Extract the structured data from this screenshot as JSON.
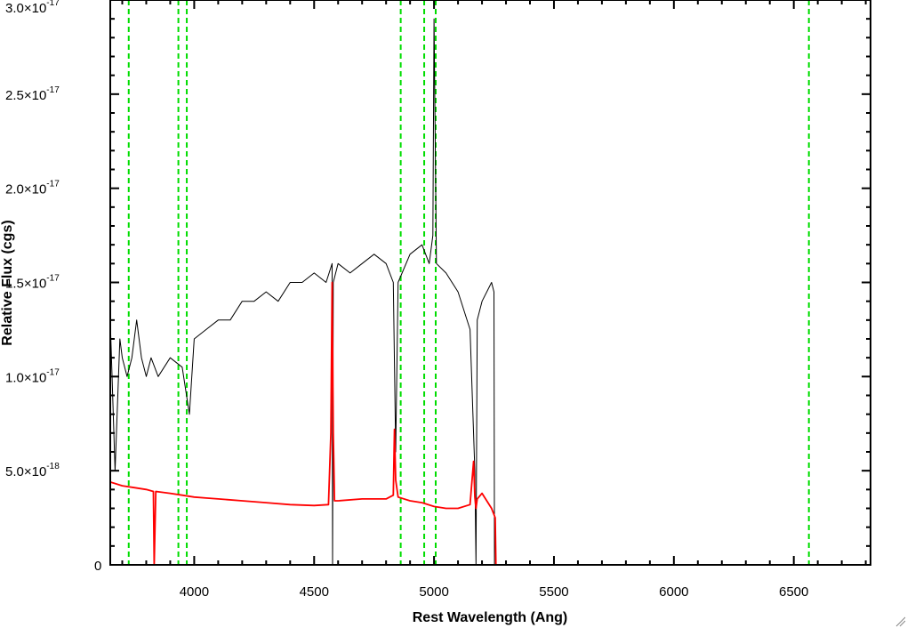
{
  "chart_data": {
    "type": "line",
    "xlabel": "Rest Wavelength (Ang)",
    "ylabel": "Relative Flux (cgs)",
    "xlim": [
      3650,
      6820
    ],
    "ylim": [
      0,
      3e-17
    ],
    "x_ticks": [
      {
        "value": 4000,
        "label": "4000"
      },
      {
        "value": 4500,
        "label": "4500"
      },
      {
        "value": 5000,
        "label": "5000"
      },
      {
        "value": 5500,
        "label": "5500"
      },
      {
        "value": 6000,
        "label": "6000"
      },
      {
        "value": 6500,
        "label": "6500"
      }
    ],
    "y_ticks": [
      {
        "value": 0,
        "mantissa": "0",
        "exponent": ""
      },
      {
        "value": 5e-18,
        "mantissa": "5.0×10",
        "exponent": "-18"
      },
      {
        "value": 1e-17,
        "mantissa": "1.0×10",
        "exponent": "-17"
      },
      {
        "value": 1.5e-17,
        "mantissa": "1.5×10",
        "exponent": "-17"
      },
      {
        "value": 2e-17,
        "mantissa": "2.0×10",
        "exponent": "-17"
      },
      {
        "value": 2.5e-17,
        "mantissa": "2.5×10",
        "exponent": "-17"
      },
      {
        "value": 3e-17,
        "mantissa": "3.0×10",
        "exponent": "-17"
      }
    ],
    "series": [
      {
        "color": "#000000",
        "style": "noisy observed spectrum",
        "x": [
          3650,
          3670,
          3690,
          3700,
          3720,
          3740,
          3760,
          3780,
          3800,
          3820,
          3850,
          3900,
          3950,
          3980,
          4000,
          4050,
          4100,
          4150,
          4200,
          4250,
          4300,
          4350,
          4400,
          4450,
          4500,
          4550,
          4575,
          4577,
          4580,
          4600,
          4650,
          4700,
          4750,
          4800,
          4830,
          4840,
          4850,
          4900,
          4950,
          4980,
          4995,
          5000,
          5010,
          5050,
          5100,
          5150,
          5170,
          5175,
          5180,
          5200,
          5240,
          5250,
          5252,
          6820
        ],
        "y": [
          1.3e-17,
          5e-18,
          1.2e-17,
          1.1e-17,
          1e-17,
          1.1e-17,
          1.3e-17,
          1.1e-17,
          1e-17,
          1.1e-17,
          1e-17,
          1.1e-17,
          1.05e-17,
          8e-18,
          1.2e-17,
          1.25e-17,
          1.3e-17,
          1.3e-17,
          1.4e-17,
          1.4e-17,
          1.45e-17,
          1.4e-17,
          1.5e-17,
          1.5e-17,
          1.55e-17,
          1.5e-17,
          1.6e-17,
          0.0,
          1.5e-17,
          1.6e-17,
          1.55e-17,
          1.6e-17,
          1.65e-17,
          1.6e-17,
          1.5e-17,
          6e-18,
          1.5e-17,
          1.65e-17,
          1.7e-17,
          1.6e-17,
          1.75e-17,
          2.9e-17,
          1.6e-17,
          1.55e-17,
          1.45e-17,
          1.25e-17,
          5e-18,
          0.0,
          1.3e-17,
          1.4e-17,
          1.5e-17,
          1.45e-17,
          0.0,
          0.0
        ]
      },
      {
        "color": "#ff0000",
        "style": "smooth model spectrum",
        "x": [
          3650,
          3700,
          3750,
          3800,
          3830,
          3833,
          3840,
          3900,
          3950,
          4000,
          4050,
          4100,
          4200,
          4300,
          4400,
          4500,
          4560,
          4570,
          4575,
          4580,
          4585,
          4600,
          4700,
          4800,
          4830,
          4835,
          4840,
          4850,
          4900,
          4950,
          5000,
          5050,
          5100,
          5150,
          5165,
          5170,
          5175,
          5180,
          5200,
          5240,
          5255,
          5258,
          6820
        ],
        "y": [
          4.4e-18,
          4.2e-18,
          4.1e-18,
          4e-18,
          3.9e-18,
          0.0,
          3.9e-18,
          3.8e-18,
          3.7e-18,
          3.6e-18,
          3.55e-18,
          3.5e-18,
          3.4e-18,
          3.3e-18,
          3.2e-18,
          3.15e-18,
          3.2e-18,
          7e-18,
          1.5e-17,
          7e-18,
          3.4e-18,
          3.4e-18,
          3.5e-18,
          3.5e-18,
          3.7e-18,
          7.2e-18,
          4.5e-18,
          3.6e-18,
          3.4e-18,
          3.3e-18,
          3.1e-18,
          3e-18,
          3e-18,
          3.2e-18,
          5.5e-18,
          3.6e-18,
          3e-18,
          3.5e-18,
          3.8e-18,
          3e-18,
          2.5e-18,
          0.0,
          0.0
        ]
      }
    ],
    "vertical_markers": {
      "color": "#00dd00",
      "style": "dashed",
      "x": [
        3727,
        3934,
        3969,
        4861,
        4959,
        5007,
        6563
      ]
    },
    "grid": false,
    "legend": "none"
  }
}
